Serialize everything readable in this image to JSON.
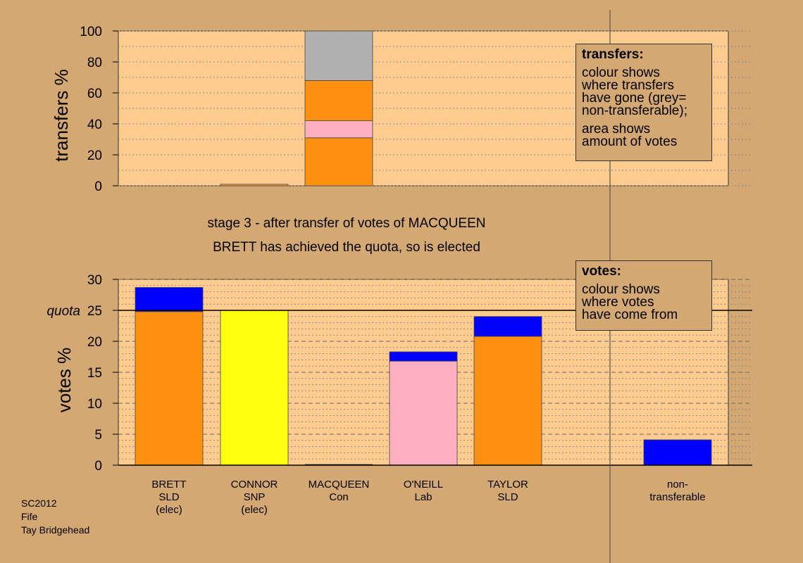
{
  "chart_data": [
    {
      "id": "transfers",
      "type": "bar",
      "stacked": true,
      "ylabel": "transfers %",
      "ylim": [
        0,
        100
      ],
      "yticks": [
        0,
        20,
        40,
        60,
        80,
        100
      ],
      "categories": [
        "BRETT",
        "CONNOR",
        "MACQUEEN",
        "O'NEILL",
        "TAYLOR",
        "non-transferable"
      ],
      "bars": [
        {
          "category": "BRETT",
          "segments": []
        },
        {
          "category": "CONNOR",
          "segments": [
            {
              "value": 1,
              "color": "#ff9a4a"
            }
          ]
        },
        {
          "category": "MACQUEEN",
          "segments": [
            {
              "value": 31,
              "color": "#ff9010"
            },
            {
              "value": 11,
              "color": "#ffb0c0"
            },
            {
              "value": 26,
              "color": "#ff9010"
            },
            {
              "value": 32,
              "color": "#b0b0b0"
            }
          ]
        },
        {
          "category": "O'NEILL",
          "segments": []
        },
        {
          "category": "TAYLOR",
          "segments": []
        },
        {
          "category": "non-transferable",
          "segments": []
        }
      ]
    },
    {
      "id": "votes",
      "type": "bar",
      "stacked": true,
      "ylabel": "votes %",
      "ylim": [
        0,
        30
      ],
      "yticks": [
        0,
        5,
        10,
        15,
        20,
        25,
        30
      ],
      "quota": 25,
      "quota_label": "quota",
      "categories": [
        "BRETT",
        "CONNOR",
        "MACQUEEN",
        "O'NEILL",
        "TAYLOR",
        "non-transferable"
      ],
      "bars": [
        {
          "category": "BRETT",
          "segments": [
            {
              "value": 24.8,
              "color": "#ff9010"
            },
            {
              "value": 3.9,
              "color": "#0000ff"
            }
          ]
        },
        {
          "category": "CONNOR",
          "segments": [
            {
              "value": 25.0,
              "color": "#ffff10"
            }
          ]
        },
        {
          "category": "MACQUEEN",
          "segments": []
        },
        {
          "category": "O'NEILL",
          "segments": [
            {
              "value": 16.8,
              "color": "#ffb0c0"
            },
            {
              "value": 1.5,
              "color": "#0000ff"
            }
          ]
        },
        {
          "category": "TAYLOR",
          "segments": [
            {
              "value": 20.8,
              "color": "#ff9010"
            },
            {
              "value": 3.2,
              "color": "#0000ff"
            }
          ]
        },
        {
          "category": "non-transferable",
          "segments": [
            {
              "value": 4.1,
              "color": "#0000ff"
            }
          ]
        }
      ]
    }
  ],
  "candidates": [
    {
      "lines": [
        "BRETT",
        "SLD",
        "(elec)"
      ]
    },
    {
      "lines": [
        "CONNOR",
        "SNP",
        "(elec)"
      ]
    },
    {
      "lines": [
        "MACQUEEN",
        "Con"
      ]
    },
    {
      "lines": [
        "O'NEILL",
        "Lab"
      ]
    },
    {
      "lines": [
        "TAYLOR",
        "SLD"
      ]
    },
    {
      "lines": [
        "non-",
        "transferable"
      ]
    }
  ],
  "stage": {
    "line1": "stage 3 - after transfer of votes of MACQUEEN",
    "line2": "BRETT has achieved the quota, so is elected"
  },
  "legend_transfers": {
    "title": "transfers:",
    "para1": [
      "colour shows",
      "where transfers",
      "have gone (grey=",
      "non-transferable);"
    ],
    "para2": [
      "area shows",
      "amount of votes"
    ]
  },
  "legend_votes": {
    "title": "votes:",
    "para1": [
      "colour shows",
      "where votes",
      "have come from"
    ]
  },
  "footer": {
    "line1": "SC2012",
    "line2": "Fife",
    "line3": "Tay Bridgehead"
  },
  "colors": {
    "background": "#d4a872",
    "plot_background": "#ffcc90"
  }
}
